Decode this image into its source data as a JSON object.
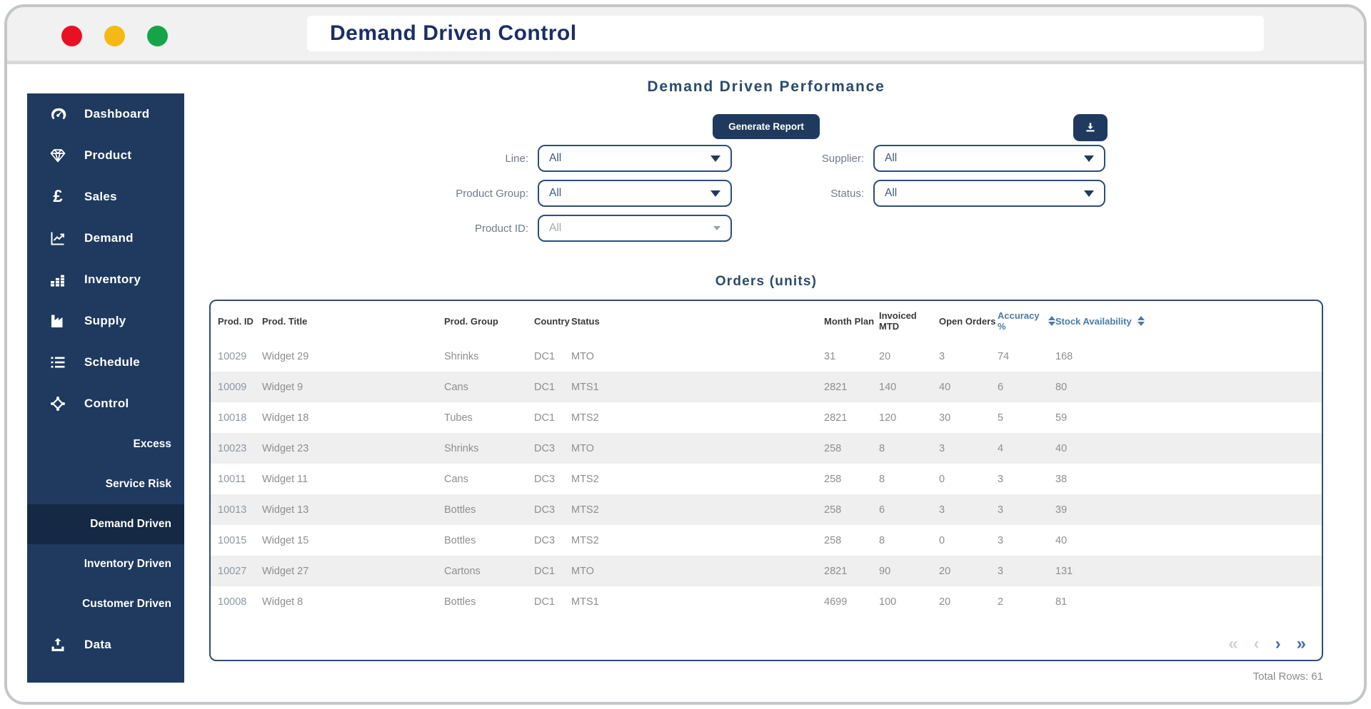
{
  "window": {
    "title": "Demand Driven Control",
    "traffic_light_colors": {
      "close": "#e81123",
      "minimize": "#f5b916",
      "zoom": "#17a349"
    }
  },
  "colors": {
    "sidebar_navy": "#1f3a5e",
    "sidebar_selected": "#152944",
    "heading_navy": "#2b4a70",
    "accent_sort_blue": "#4a7aaa",
    "pagination_blue": "#3f6fb5",
    "row_stripe": "#efefef"
  },
  "sidebar": {
    "items": [
      {
        "label": "Dashboard",
        "icon": "dashboard-gauge-icon"
      },
      {
        "label": "Product",
        "icon": "gem-icon"
      },
      {
        "label": "Sales",
        "icon": "pound-sterling-icon"
      },
      {
        "label": "Demand",
        "icon": "line-chart-icon"
      },
      {
        "label": "Inventory",
        "icon": "bar-stacks-icon"
      },
      {
        "label": "Supply",
        "icon": "factory-icon"
      },
      {
        "label": "Schedule",
        "icon": "numbered-list-icon"
      },
      {
        "label": "Control",
        "icon": "crosshair-icon"
      }
    ],
    "sub_items": [
      {
        "label": "Excess",
        "selected": false
      },
      {
        "label": "Service Risk",
        "selected": false
      },
      {
        "label": "Demand Driven",
        "selected": true
      },
      {
        "label": "Inventory Driven",
        "selected": false
      },
      {
        "label": "Customer Driven",
        "selected": false
      }
    ],
    "footer_item": {
      "label": "Data",
      "icon": "upload-icon"
    }
  },
  "header": {
    "title": "Demand Driven Performance"
  },
  "toolbar": {
    "generate_report_label": "Generate Report",
    "download_icon": "download-icon"
  },
  "filters": {
    "line": {
      "label": "Line:",
      "value": "All"
    },
    "product_group": {
      "label": "Product Group:",
      "value": "All"
    },
    "product_id": {
      "label": "Product ID:",
      "value": "All"
    },
    "supplier": {
      "label": "Supplier:",
      "value": "All"
    },
    "status": {
      "label": "Status:",
      "value": "All"
    }
  },
  "table": {
    "title": "Orders (units)",
    "columns": [
      {
        "label": "Prod. ID",
        "sortable": false
      },
      {
        "label": "Prod. Title",
        "sortable": false
      },
      {
        "label": "Prod. Group",
        "sortable": false
      },
      {
        "label": "Country",
        "sortable": false
      },
      {
        "label": "Status",
        "sortable": false
      },
      {
        "label": "Month Plan",
        "sortable": false
      },
      {
        "label": "Invoiced MTD",
        "sortable": false
      },
      {
        "label": "Open Orders",
        "sortable": false
      },
      {
        "label": "Accuracy %",
        "sortable": true
      },
      {
        "label": "Stock Availability",
        "sortable": true
      }
    ],
    "rows": [
      [
        "10029",
        "Widget 29",
        "Shrinks",
        "DC1",
        "MTO",
        "31",
        "20",
        "3",
        "74",
        "168"
      ],
      [
        "10009",
        "Widget 9",
        "Cans",
        "DC1",
        "MTS1",
        "2821",
        "140",
        "40",
        "6",
        "80"
      ],
      [
        "10018",
        "Widget 18",
        "Tubes",
        "DC1",
        "MTS2",
        "2821",
        "120",
        "30",
        "5",
        "59"
      ],
      [
        "10023",
        "Widget 23",
        "Shrinks",
        "DC3",
        "MTO",
        "258",
        "8",
        "3",
        "4",
        "40"
      ],
      [
        "10011",
        "Widget 11",
        "Cans",
        "DC3",
        "MTS2",
        "258",
        "8",
        "0",
        "3",
        "38"
      ],
      [
        "10013",
        "Widget 13",
        "Bottles",
        "DC3",
        "MTS2",
        "258",
        "6",
        "3",
        "3",
        "39"
      ],
      [
        "10015",
        "Widget 15",
        "Bottles",
        "DC3",
        "MTS2",
        "258",
        "8",
        "0",
        "3",
        "40"
      ],
      [
        "10027",
        "Widget 27",
        "Cartons",
        "DC1",
        "MTO",
        "2821",
        "90",
        "20",
        "3",
        "131"
      ],
      [
        "10008",
        "Widget 8",
        "Bottles",
        "DC1",
        "MTS1",
        "4699",
        "100",
        "20",
        "2",
        "81"
      ]
    ],
    "pagination": {
      "first": "«",
      "prev": "‹",
      "next": "›",
      "last": "»"
    },
    "total_rows_label": "Total Rows: 61"
  }
}
